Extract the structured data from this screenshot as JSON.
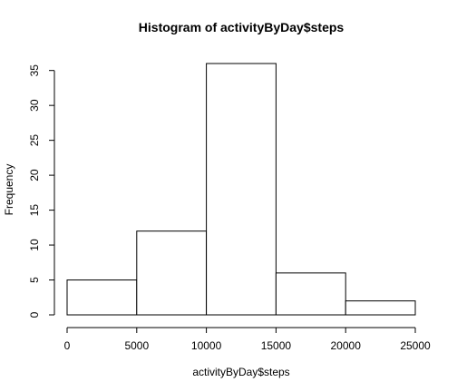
{
  "chart_data": {
    "type": "bar",
    "subtype": "histogram",
    "title": "Histogram of activityByDay$steps",
    "xlabel": "activityByDay$steps",
    "ylabel": "Frequency",
    "bins": [
      {
        "from": 0,
        "to": 5000,
        "count": 5
      },
      {
        "from": 5000,
        "to": 10000,
        "count": 12
      },
      {
        "from": 10000,
        "to": 15000,
        "count": 36
      },
      {
        "from": 15000,
        "to": 20000,
        "count": 6
      },
      {
        "from": 20000,
        "to": 25000,
        "count": 2
      }
    ],
    "xlim": [
      0,
      25000
    ],
    "ylim": [
      0,
      36
    ],
    "xticks": [
      0,
      5000,
      10000,
      15000,
      20000,
      25000
    ],
    "yticks": [
      0,
      5,
      10,
      15,
      20,
      25,
      30,
      35
    ],
    "grid": false,
    "bar_fill": "#ffffff",
    "bar_stroke": "#000000"
  }
}
